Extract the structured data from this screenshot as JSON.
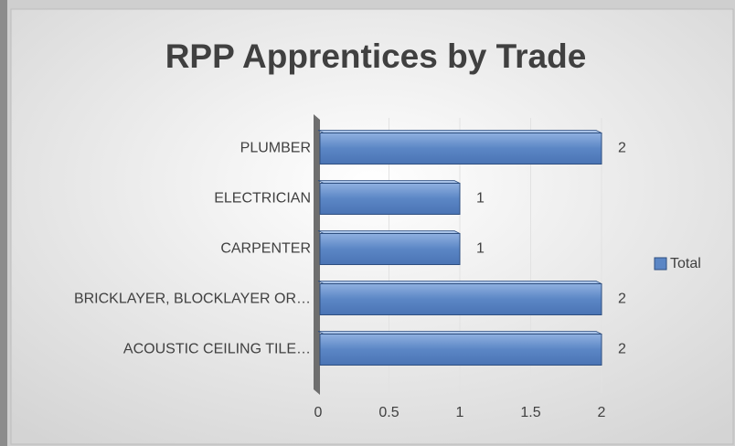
{
  "chart_data": {
    "type": "bar",
    "orientation": "horizontal",
    "title": "RPP Apprentices by Trade",
    "categories": [
      "PLUMBER",
      "ELECTRICIAN",
      "CARPENTER",
      "BRICKLAYER, BLOCKLAYER OR…",
      "ACOUSTIC CEILING TILE…"
    ],
    "series": [
      {
        "name": "Total",
        "color": "#5b86c5",
        "values": [
          2,
          1,
          1,
          2,
          2
        ]
      }
    ],
    "xlim": [
      0,
      2
    ],
    "xticks": [
      0,
      0.5,
      1,
      1.5,
      2
    ],
    "grid": true,
    "legend": "right"
  }
}
